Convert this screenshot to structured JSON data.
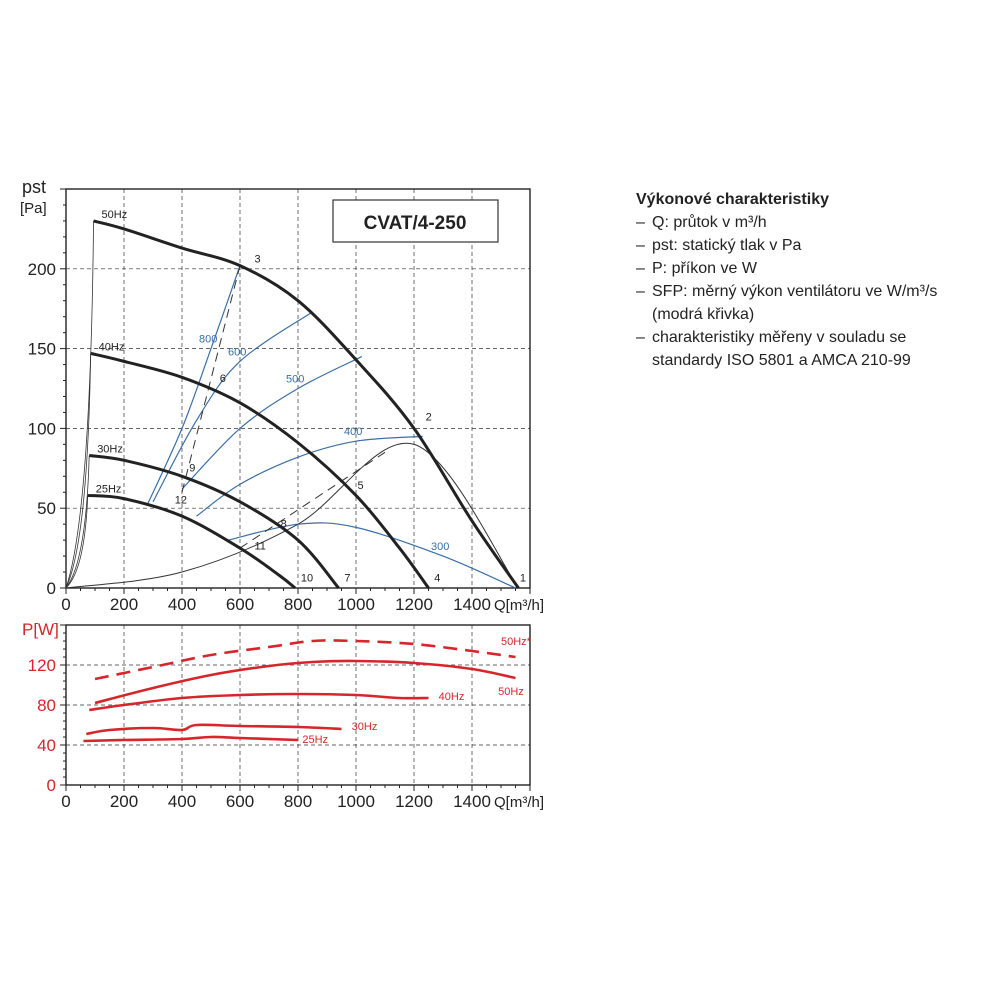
{
  "chart_data": [
    {
      "type": "line",
      "title": "CVAT/4-250",
      "xlabel": "Q[m³/h]",
      "ylabel": "pst [Pa]",
      "xlim": [
        0,
        1600
      ],
      "ylim": [
        0,
        250
      ],
      "x_ticks": [
        "0",
        "200",
        "400",
        "600",
        "800",
        "1000",
        "1200",
        "1400"
      ],
      "y_ticks": [
        "0",
        "50",
        "100",
        "150",
        "200"
      ],
      "grid": true,
      "series": [
        {
          "name": "50Hz",
          "color": "#222222",
          "points": [
            [
              95,
              230
            ],
            [
              200,
              225
            ],
            [
              400,
              213
            ],
            [
              600,
              202
            ],
            [
              800,
              180
            ],
            [
              1000,
              143
            ],
            [
              1200,
              100
            ],
            [
              1400,
              42
            ],
            [
              1560,
              0
            ]
          ]
        },
        {
          "name": "40Hz",
          "color": "#222222",
          "points": [
            [
              85,
              147
            ],
            [
              200,
              142
            ],
            [
              400,
              132
            ],
            [
              600,
              116
            ],
            [
              800,
              91
            ],
            [
              1000,
              58
            ],
            [
              1150,
              25
            ],
            [
              1250,
              0
            ]
          ]
        },
        {
          "name": "30Hz",
          "color": "#222222",
          "points": [
            [
              80,
              83
            ],
            [
              200,
              80
            ],
            [
              400,
              70
            ],
            [
              600,
              54
            ],
            [
              800,
              30
            ],
            [
              940,
              0
            ]
          ]
        },
        {
          "name": "25Hz",
          "color": "#222222",
          "points": [
            [
              75,
              58
            ],
            [
              200,
              56
            ],
            [
              400,
              45
            ],
            [
              600,
              25
            ],
            [
              735,
              8
            ],
            [
              790,
              0
            ]
          ]
        }
      ],
      "system_curves": [
        {
          "label": "1",
          "points": [
            [
              0,
              0
            ],
            [
              400,
              10
            ],
            [
              800,
              40
            ],
            [
              1200,
              90
            ],
            [
              1560,
              0
            ]
          ]
        },
        {
          "label": "3",
          "style": "dashed",
          "points": [
            [
              400,
              60
            ],
            [
              600,
              202
            ]
          ]
        },
        {
          "label": "5",
          "style": "dashed",
          "points": [
            [
              600,
              25
            ],
            [
              1100,
              85
            ]
          ]
        }
      ],
      "sfp_curves": [
        {
          "label": "800",
          "color": "#3a6ea5",
          "points": [
            [
              280,
              52
            ],
            [
              400,
              100
            ],
            [
              500,
              150
            ],
            [
              600,
              202
            ]
          ]
        },
        {
          "label": "600",
          "color": "#3a6ea5",
          "points": [
            [
              300,
              54
            ],
            [
              450,
              105
            ],
            [
              600,
              142
            ],
            [
              850,
              173
            ]
          ]
        },
        {
          "label": "500",
          "color": "#3a6ea5",
          "points": [
            [
              400,
              62
            ],
            [
              600,
              100
            ],
            [
              800,
              125
            ],
            [
              1020,
              145
            ]
          ]
        },
        {
          "label": "400",
          "color": "#3a6ea5",
          "points": [
            [
              450,
              45
            ],
            [
              600,
              65
            ],
            [
              800,
              82
            ],
            [
              1000,
              92
            ],
            [
              1230,
              95
            ]
          ]
        },
        {
          "label": "300",
          "color": "#3a6ea5",
          "points": [
            [
              560,
              30
            ],
            [
              800,
              40
            ],
            [
              1000,
              38
            ],
            [
              1300,
              20
            ],
            [
              1550,
              0
            ]
          ]
        }
      ],
      "point_labels": [
        {
          "label": "1",
          "x": 1565,
          "y": 4
        },
        {
          "label": "2",
          "x": 1240,
          "y": 105
        },
        {
          "label": "3",
          "x": 650,
          "y": 204
        },
        {
          "label": "4",
          "x": 1270,
          "y": 4
        },
        {
          "label": "5",
          "x": 1005,
          "y": 62
        },
        {
          "label": "6",
          "x": 530,
          "y": 129
        },
        {
          "label": "7",
          "x": 960,
          "y": 4
        },
        {
          "label": "8",
          "x": 740,
          "y": 38
        },
        {
          "label": "9",
          "x": 425,
          "y": 73
        },
        {
          "label": "10",
          "x": 810,
          "y": 4
        },
        {
          "label": "11",
          "x": 650,
          "y": 24
        },
        {
          "label": "12",
          "x": 375,
          "y": 53
        }
      ]
    },
    {
      "type": "line",
      "xlabel": "Q[m³/h]",
      "ylabel": "P[W]",
      "xlim": [
        0,
        1600
      ],
      "ylim": [
        0,
        160
      ],
      "x_ticks": [
        "0",
        "200",
        "400",
        "600",
        "800",
        "1000",
        "1200",
        "1400"
      ],
      "y_ticks": [
        "0",
        "40",
        "80",
        "120"
      ],
      "grid": true,
      "series": [
        {
          "name": "50Hz*",
          "color": "#d6262b",
          "style": "dashed",
          "points": [
            [
              100,
              106
            ],
            [
              300,
              118
            ],
            [
              500,
              130
            ],
            [
              700,
              138
            ],
            [
              850,
              144
            ],
            [
              1000,
              144
            ],
            [
              1200,
              141
            ],
            [
              1400,
              134
            ],
            [
              1550,
              128
            ]
          ]
        },
        {
          "name": "50Hz",
          "color": "#d6262b",
          "points": [
            [
              100,
              82
            ],
            [
              300,
              97
            ],
            [
              500,
              110
            ],
            [
              700,
              119
            ],
            [
              850,
              123
            ],
            [
              1000,
              124
            ],
            [
              1200,
              122
            ],
            [
              1400,
              116
            ],
            [
              1550,
              107
            ]
          ]
        },
        {
          "name": "40Hz",
          "color": "#d6262b",
          "points": [
            [
              80,
              75
            ],
            [
              200,
              80
            ],
            [
              400,
              87
            ],
            [
              600,
              90
            ],
            [
              800,
              91
            ],
            [
              1000,
              90
            ],
            [
              1150,
              87
            ],
            [
              1250,
              87
            ]
          ]
        },
        {
          "name": "30Hz",
          "color": "#d6262b",
          "points": [
            [
              70,
              51
            ],
            [
              150,
              55
            ],
            [
              300,
              57
            ],
            [
              400,
              55
            ],
            [
              450,
              60
            ],
            [
              600,
              59
            ],
            [
              800,
              58
            ],
            [
              950,
              56
            ]
          ]
        },
        {
          "name": "25Hz",
          "color": "#d6262b",
          "points": [
            [
              60,
              44
            ],
            [
              200,
              45
            ],
            [
              400,
              46
            ],
            [
              500,
              48
            ],
            [
              600,
              47
            ],
            [
              800,
              45
            ]
          ]
        }
      ],
      "series_labels": [
        {
          "label": "50Hz*",
          "x": 1500,
          "y": 140
        },
        {
          "label": "50Hz",
          "x": 1490,
          "y": 90
        },
        {
          "label": "40Hz",
          "x": 1285,
          "y": 85
        },
        {
          "label": "30Hz",
          "x": 985,
          "y": 55
        },
        {
          "label": "25Hz",
          "x": 815,
          "y": 42
        }
      ]
    }
  ],
  "legend": {
    "title": "Výkonové charakteristiky",
    "items": [
      {
        "dash": "–",
        "text": "Q: průtok v m³/h"
      },
      {
        "dash": "–",
        "text": "pst: statický tlak v Pa"
      },
      {
        "dash": "–",
        "text": "P: příkon ve W"
      },
      {
        "dash": "–",
        "text": "SFP: měrný výkon ventilátoru ve W/m³/s"
      },
      {
        "dash": "",
        "text": "(modrá křivka)"
      },
      {
        "dash": "–",
        "text": "charakteristiky měřeny v souladu se"
      },
      {
        "dash": "",
        "text": "standardy ISO 5801 a AMCA 210-99"
      }
    ]
  }
}
